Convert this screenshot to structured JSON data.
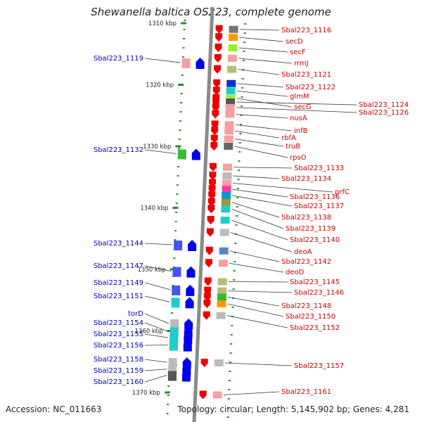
{
  "title": "Shewanella baltica OS223, complete genome",
  "accession": "Accession: NC_011663",
  "topology": "Topology: circular; Length: 5,145,902 bp; Genes: 4,281",
  "colors": {
    "axis": "#8a8a8a",
    "tick": "#2e8b2e",
    "left_label": "#0000bb",
    "right_label": "#cc0000",
    "reverse_arrow": "#ee0000",
    "forward_arrow": "#0000ee",
    "leader": "#333333"
  },
  "kbp_marks": [
    {
      "label": "1310 kbp",
      "value": 1310
    },
    {
      "label": "1320 kbp",
      "value": 1320
    },
    {
      "label": "1330 kbp",
      "value": 1330
    },
    {
      "label": "1340 kbp",
      "value": 1340
    },
    {
      "label": "1350 kbp",
      "value": 1350
    },
    {
      "label": "1360 kbp",
      "value": 1360
    },
    {
      "label": "1370 kbp",
      "value": 1370
    }
  ],
  "left_genes": [
    {
      "name": "Sbal223_1119",
      "pos": 1316.4,
      "color": "#f4a0a0"
    },
    {
      "name": "Sbal223_1132",
      "pos": 1331.2,
      "color": "#33bb33"
    },
    {
      "name": "Sbal223_1144",
      "pos": 1346.0,
      "color": "#4455ee"
    },
    {
      "name": "Sbal223_1147",
      "pos": 1350.3,
      "color": "#4455ee"
    },
    {
      "name": "Sbal223_1149",
      "pos": 1353.3,
      "color": "#4455ee"
    },
    {
      "name": "Sbal223_1151",
      "pos": 1355.3,
      "color": "#22cccc"
    },
    {
      "name": "torD",
      "pos": 1358.8,
      "color": "#bbbbbb"
    },
    {
      "name": "Sbal223_1154",
      "pos": 1360.1,
      "color": "#22cccc"
    },
    {
      "name": "Sbal223_1155",
      "pos": 1361.1,
      "color": "#22cccc"
    },
    {
      "name": "Sbal223_1156",
      "pos": 1362.3,
      "color": "#22cccc"
    },
    {
      "name": "Sbal223_1158",
      "pos": 1365.1,
      "color": "#bbbbbb"
    },
    {
      "name": "Sbal223_1159",
      "pos": 1366.2,
      "color": "#bbbbbb"
    },
    {
      "name": "Sbal223_1160",
      "pos": 1367.2,
      "color": "#555555"
    }
  ],
  "right_genes": [
    {
      "name": "Sbal223_1116",
      "pos": 1311.0,
      "color": "#777777"
    },
    {
      "name": "secD",
      "pos": 1312.3,
      "color": "#ff9900"
    },
    {
      "name": "secF",
      "pos": 1314.0,
      "color": "#99ee33"
    },
    {
      "name": "rrmJ",
      "pos": 1315.7,
      "color": "#f4a0a0"
    },
    {
      "name": "Sbal223_1121",
      "pos": 1317.5,
      "color": "#bbbb77"
    },
    {
      "name": "Sbal223_1122",
      "pos": 1319.8,
      "color": "#0033cc"
    },
    {
      "name": "glmM",
      "pos": 1321.0,
      "color": "#22cccc"
    },
    {
      "name": "secG",
      "pos": 1322.2,
      "color": "#99ee33"
    },
    {
      "name": "Sbal223_1124",
      "pos": 1322.8,
      "color": "#555555"
    },
    {
      "name": "Sbal223_1126",
      "pos": 1323.7,
      "color": "#f4a0a0"
    },
    {
      "name": "nusA",
      "pos": 1324.8,
      "color": "#f4a0a0"
    },
    {
      "name": "infB",
      "pos": 1326.5,
      "color": "#f4a0a0"
    },
    {
      "name": "rbfA",
      "pos": 1327.5,
      "color": "#f4a0a0"
    },
    {
      "name": "truB",
      "pos": 1328.8,
      "color": "#f4a0a0"
    },
    {
      "name": "rpsO",
      "pos": 1330.0,
      "color": "#666666"
    },
    {
      "name": "Sbal223_1133",
      "pos": 1333.4,
      "color": "#f4a0a0"
    },
    {
      "name": "Sbal223_1134",
      "pos": 1334.8,
      "color": "#bbbbbb"
    },
    {
      "name": "prfC",
      "pos": 1336.0,
      "color": "#f4a0a0"
    },
    {
      "name": "Sbal223_1136",
      "pos": 1337.0,
      "color": "#ff33aa"
    },
    {
      "name": "Sbal223_1137",
      "pos": 1338.0,
      "color": "#0099dd"
    },
    {
      "name": "Sbal223_1138",
      "pos": 1339.1,
      "color": "#999933"
    },
    {
      "name": "Sbal223_1139",
      "pos": 1340.2,
      "color": "#22cccc"
    },
    {
      "name": "Sbal223_1140",
      "pos": 1342.0,
      "color": "#22cccc"
    },
    {
      "name": "deoA",
      "pos": 1344.0,
      "color": "#bbbbbb"
    },
    {
      "name": "Sbal223_1142",
      "pos": 1347.0,
      "color": "#5588bb"
    },
    {
      "name": "deoD",
      "pos": 1349.0,
      "color": "#f4a0a0"
    },
    {
      "name": "Sbal223_1145",
      "pos": 1352.0,
      "color": "#bbbb77"
    },
    {
      "name": "Sbal223_1146",
      "pos": 1353.5,
      "color": "#bbbb77"
    },
    {
      "name": "Sbal223_1148",
      "pos": 1354.5,
      "color": "#33bb33"
    },
    {
      "name": "Sbal223_1150",
      "pos": 1355.6,
      "color": "#ff9900"
    },
    {
      "name": "Sbal223_1152",
      "pos": 1357.5,
      "color": "#bbbbbb"
    },
    {
      "name": "Sbal223_1157",
      "pos": 1365.2,
      "color": "#bbbbbb"
    },
    {
      "name": "Sbal223_1161",
      "pos": 1370.4,
      "color": "#f4a0a0"
    }
  ]
}
